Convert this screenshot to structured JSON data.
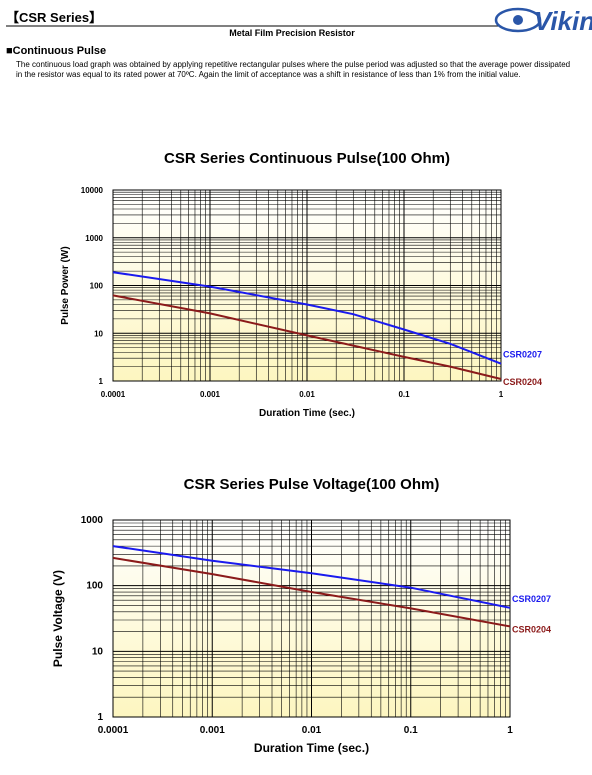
{
  "header": {
    "series": "【CSR Series】",
    "subtitle": "Metal Film Precision Resistor",
    "logo": "Viking"
  },
  "section": {
    "title": "■Continuous Pulse",
    "text": "The continuous load graph was obtained by applying repetitive rectangular pulses where the pulse period was adjusted so that the average power dissipated in the resistor was equal to its rated power at 70ºC.   Again the limit of acceptance was a shift in resistance of less than 1% from the initial value."
  },
  "chart_data": [
    {
      "type": "line",
      "title": "CSR Series Continuous Pulse(100 Ohm)",
      "x_label": "Duration Time (sec.)",
      "y_label": "Pulse Power (W)",
      "x": [
        0.0001,
        0.001,
        0.01,
        0.03,
        0.1,
        0.3,
        1
      ],
      "series": [
        {
          "name": "CSR0207",
          "color": "#1a1aee",
          "values": [
            190,
            95,
            40,
            25,
            12,
            6,
            2.3
          ]
        },
        {
          "name": "CSR0204",
          "color": "#8b1a1a",
          "values": [
            62,
            26,
            9,
            5.5,
            3.2,
            2,
            1.1
          ]
        }
      ],
      "xlim": [
        0.0001,
        1
      ],
      "ylim": [
        1,
        10000
      ],
      "xticks": [
        0.0001,
        0.001,
        0.01,
        0.1,
        1
      ],
      "yticks": [
        1,
        10,
        100,
        1000,
        10000
      ],
      "log_x": true,
      "log_y": true,
      "grid": true
    },
    {
      "type": "line",
      "title": "CSR Series Pulse Voltage(100 Ohm)",
      "x_label": "Duration Time (sec.)",
      "y_label": "Pulse Voltage (V)",
      "x": [
        0.0001,
        0.001,
        0.01,
        0.1,
        1
      ],
      "series": [
        {
          "name": "CSR0207",
          "color": "#1a1aee",
          "values": [
            400,
            240,
            155,
            93,
            46
          ]
        },
        {
          "name": "CSR0204",
          "color": "#8b1a1a",
          "values": [
            265,
            150,
            80,
            45,
            24
          ]
        }
      ],
      "xlim": [
        0.0001,
        1
      ],
      "ylim": [
        1,
        1000
      ],
      "xticks": [
        0.0001,
        0.001,
        0.01,
        0.1,
        1
      ],
      "yticks": [
        1,
        10,
        100,
        1000
      ],
      "log_x": true,
      "log_y": true,
      "grid": true
    }
  ]
}
